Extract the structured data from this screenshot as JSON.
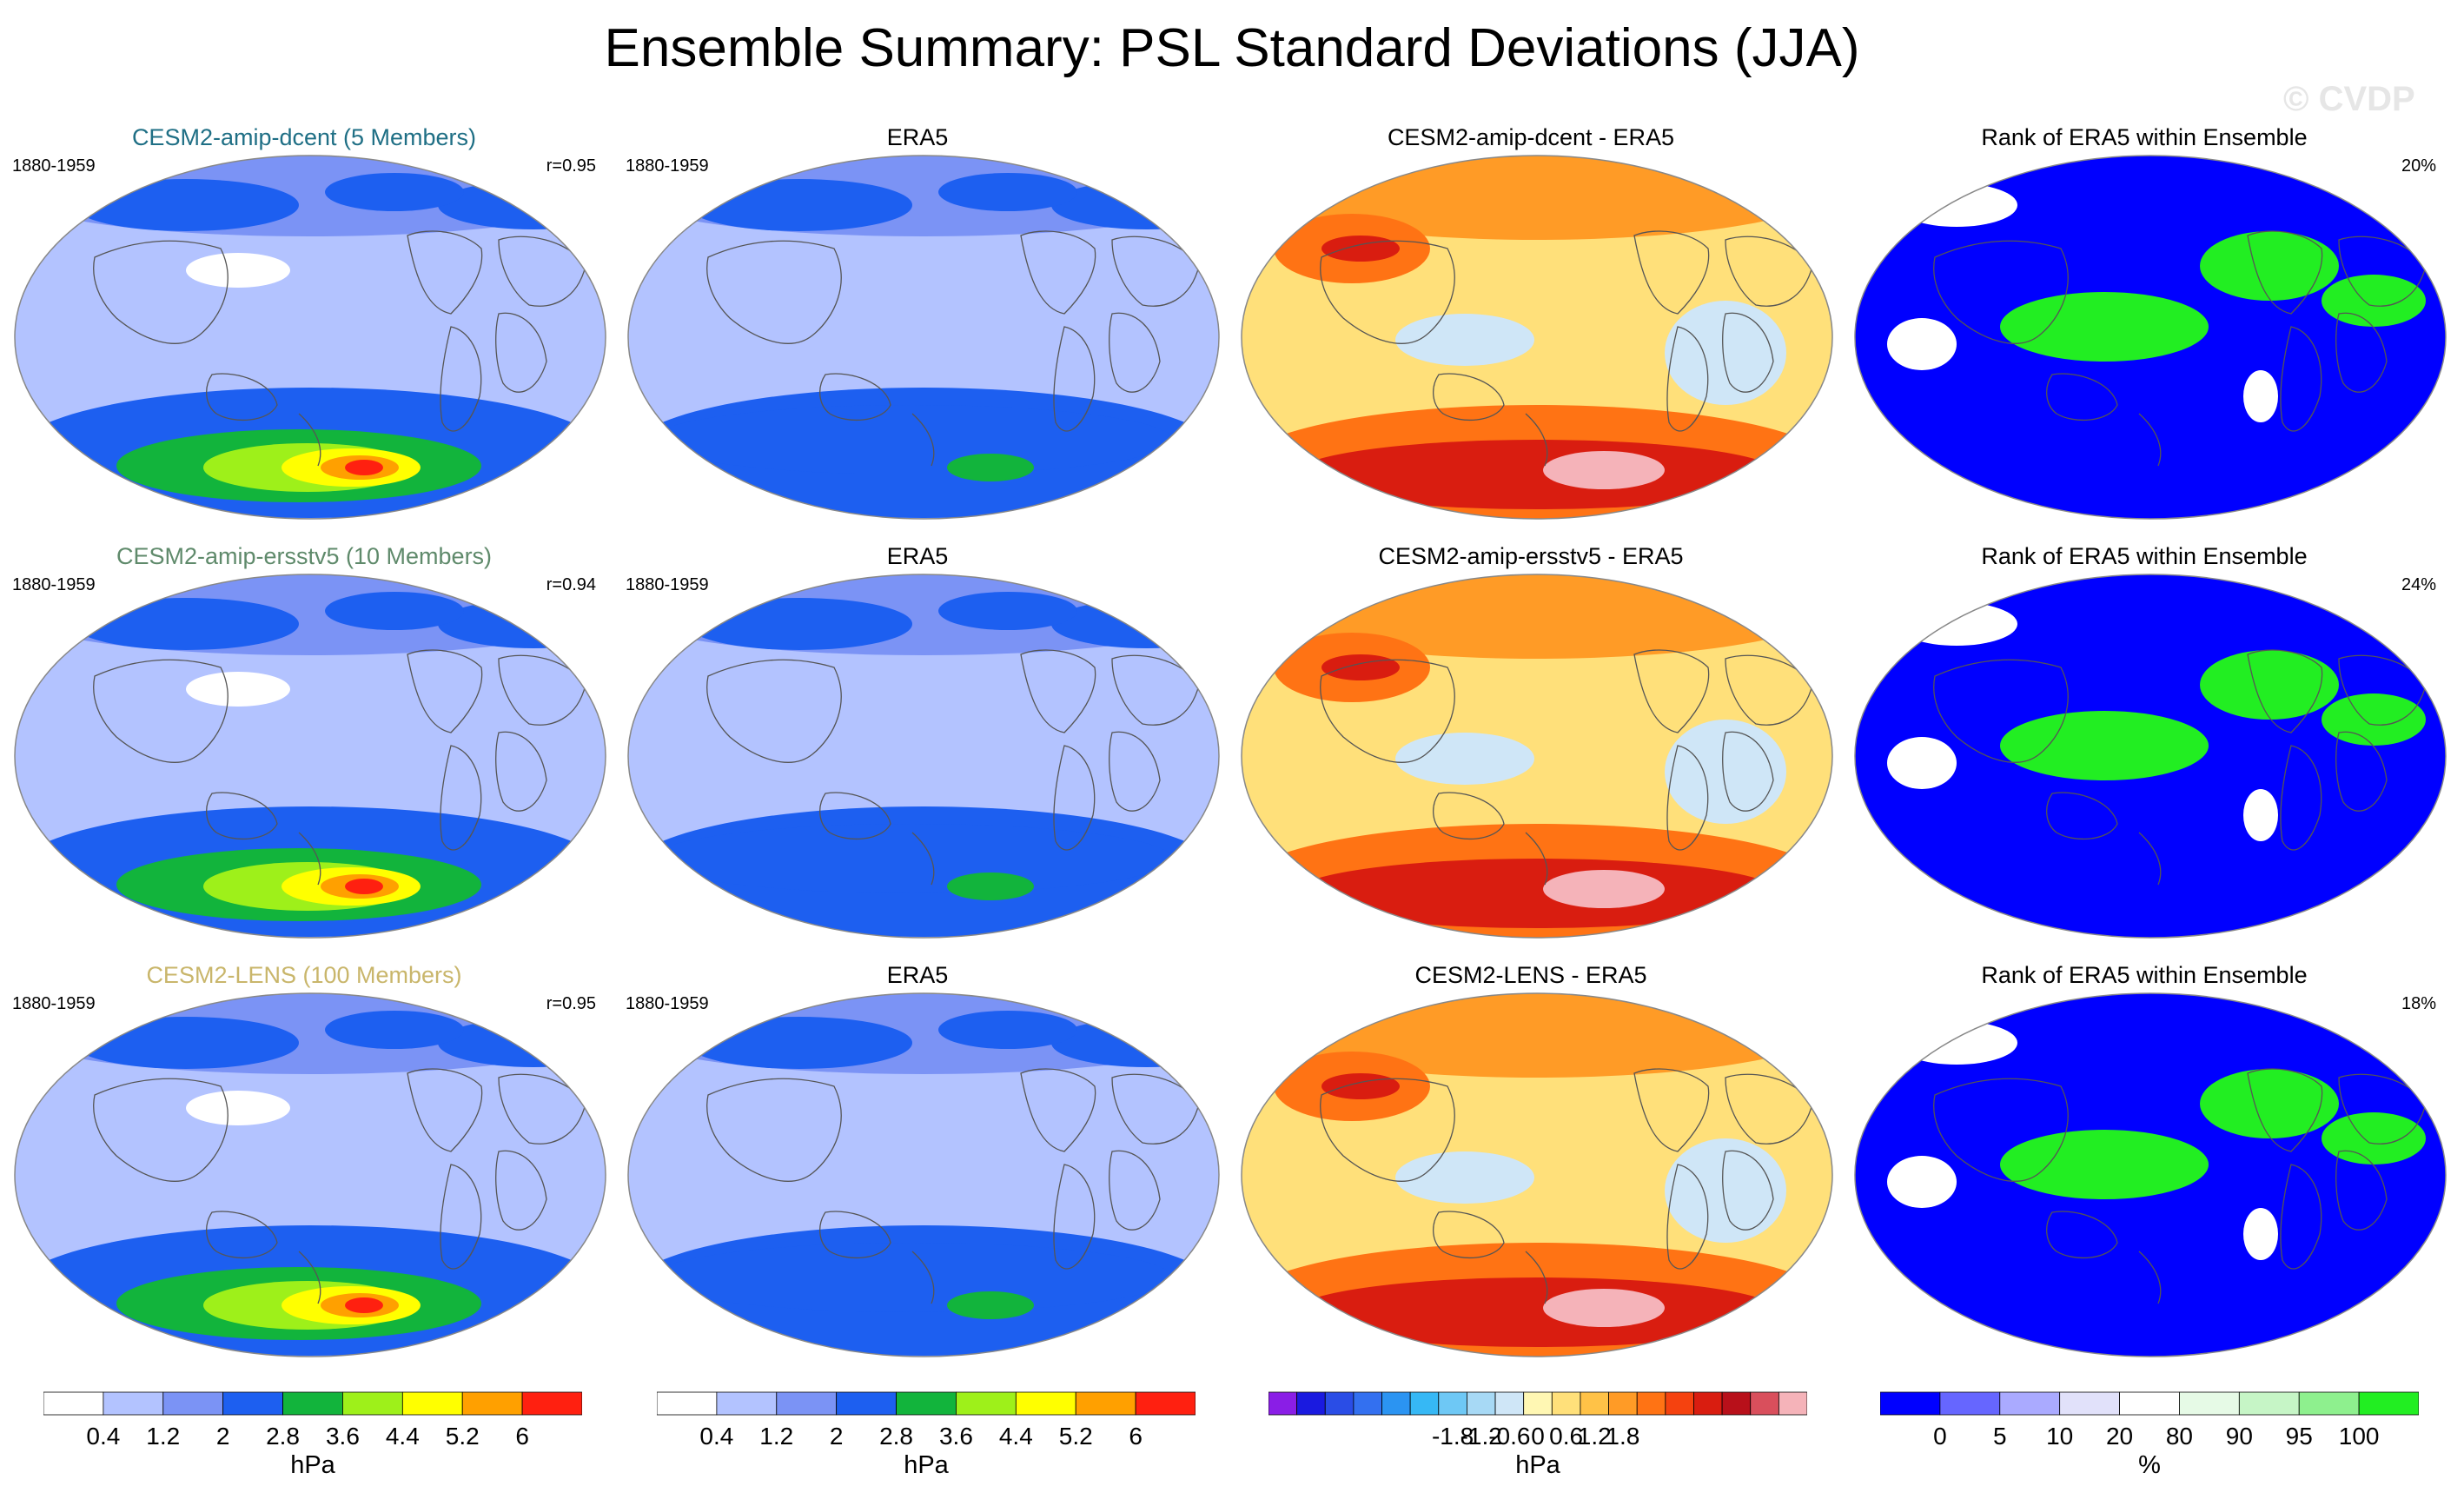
{
  "title": "Ensemble Summary: PSL Standard Deviations (JJA)",
  "watermark": "© CVDP",
  "colors": {
    "dcent": "#1f6f85",
    "ersstv5": "#5f8a6b",
    "lens": "#c9b66b",
    "black": "#000000"
  },
  "rows": [
    {
      "panels": [
        {
          "kind": "std",
          "title": "CESM2-amip-dcent (5 Members)",
          "title_color_key": "dcent",
          "left": "1880-1959",
          "right": "r=0.95"
        },
        {
          "kind": "std",
          "title": "ERA5",
          "title_color_key": "black",
          "left": "1880-1959",
          "right": ""
        },
        {
          "kind": "diff",
          "title": "CESM2-amip-dcent - ERA5",
          "title_color_key": "black",
          "left": "",
          "right": ""
        },
        {
          "kind": "rank",
          "title": "Rank of ERA5 within Ensemble",
          "title_color_key": "black",
          "left": "",
          "right": "20%"
        }
      ]
    },
    {
      "panels": [
        {
          "kind": "std",
          "title": "CESM2-amip-ersstv5 (10 Members)",
          "title_color_key": "ersstv5",
          "left": "1880-1959",
          "right": "r=0.94"
        },
        {
          "kind": "std",
          "title": "ERA5",
          "title_color_key": "black",
          "left": "1880-1959",
          "right": ""
        },
        {
          "kind": "diff",
          "title": "CESM2-amip-ersstv5 - ERA5",
          "title_color_key": "black",
          "left": "",
          "right": ""
        },
        {
          "kind": "rank",
          "title": "Rank of ERA5 within Ensemble",
          "title_color_key": "black",
          "left": "",
          "right": "24%"
        }
      ]
    },
    {
      "panels": [
        {
          "kind": "std",
          "title": "CESM2-LENS (100 Members)",
          "title_color_key": "lens",
          "left": "1880-1959",
          "right": "r=0.95"
        },
        {
          "kind": "std",
          "title": "ERA5",
          "title_color_key": "black",
          "left": "1880-1959",
          "right": ""
        },
        {
          "kind": "diff",
          "title": "CESM2-LENS - ERA5",
          "title_color_key": "black",
          "left": "",
          "right": ""
        },
        {
          "kind": "rank",
          "title": "Rank of ERA5 within Ensemble",
          "title_color_key": "black",
          "left": "",
          "right": "18%"
        }
      ]
    }
  ],
  "colorbars": [
    {
      "unit": "hPa",
      "colors": [
        "#ffffff",
        "#b3c3ff",
        "#7b93f5",
        "#1d5ff0",
        "#12b43c",
        "#9ef01a",
        "#ffff00",
        "#ffa000",
        "#ff2010"
      ],
      "labels": [
        "0.4",
        "1.2",
        "2",
        "2.8",
        "3.6",
        "4.4",
        "5.2",
        "6"
      ]
    },
    {
      "unit": "hPa",
      "colors": [
        "#ffffff",
        "#b3c3ff",
        "#7b93f5",
        "#1d5ff0",
        "#12b43c",
        "#9ef01a",
        "#ffff00",
        "#ffa000",
        "#ff2010"
      ],
      "labels": [
        "0.4",
        "1.2",
        "2",
        "2.8",
        "3.6",
        "4.4",
        "5.2",
        "6"
      ]
    },
    {
      "unit": "hPa",
      "colors": [
        "#8a1ee6",
        "#1a1ae0",
        "#2a4de6",
        "#3370f0",
        "#2b94f2",
        "#36b8f5",
        "#6ec8f5",
        "#a7d9f5",
        "#cfe6f7",
        "#fff7b3",
        "#ffe07a",
        "#ffc247",
        "#ff9b26",
        "#ff7314",
        "#f5420f",
        "#d91d10",
        "#b8101a",
        "#d94f5c",
        "#f5b3b9"
      ],
      "labels": [
        "-1.8",
        "-1.2",
        "-0.6",
        "0",
        "0.6",
        "1.2",
        "1.8"
      ]
    },
    {
      "unit": "%",
      "colors": [
        "#0000ff",
        "#6666ff",
        "#aaaaff",
        "#e1e1fa",
        "#ffffff",
        "#e6fae6",
        "#c6f5c6",
        "#8ef08e",
        "#22ee22"
      ],
      "labels": [
        "0",
        "5",
        "10",
        "20",
        "80",
        "90",
        "95",
        "100"
      ]
    }
  ],
  "chart_data": [
    {
      "type": "heatmap",
      "title": "CESM2-amip-dcent (5 Members)",
      "period": "1880-1959",
      "pattern_correlation": "r=0.95",
      "unit": "hPa"
    },
    {
      "type": "heatmap",
      "title": "ERA5",
      "period": "1880-1959",
      "unit": "hPa"
    },
    {
      "type": "heatmap",
      "title": "CESM2-amip-dcent - ERA5",
      "unit": "hPa"
    },
    {
      "type": "heatmap",
      "title": "Rank of ERA5 within Ensemble",
      "area_fraction": "20%",
      "unit": "%"
    },
    {
      "type": "heatmap",
      "title": "CESM2-amip-ersstv5 (10 Members)",
      "period": "1880-1959",
      "pattern_correlation": "r=0.94",
      "unit": "hPa"
    },
    {
      "type": "heatmap",
      "title": "ERA5",
      "period": "1880-1959",
      "unit": "hPa"
    },
    {
      "type": "heatmap",
      "title": "CESM2-amip-ersstv5 - ERA5",
      "unit": "hPa"
    },
    {
      "type": "heatmap",
      "title": "Rank of ERA5 within Ensemble",
      "area_fraction": "24%",
      "unit": "%"
    },
    {
      "type": "heatmap",
      "title": "CESM2-LENS (100 Members)",
      "period": "1880-1959",
      "pattern_correlation": "r=0.95",
      "unit": "hPa"
    },
    {
      "type": "heatmap",
      "title": "ERA5",
      "period": "1880-1959",
      "unit": "hPa"
    },
    {
      "type": "heatmap",
      "title": "CESM2-LENS - ERA5",
      "unit": "hPa"
    },
    {
      "type": "heatmap",
      "title": "Rank of ERA5 within Ensemble",
      "area_fraction": "18%",
      "unit": "%"
    }
  ]
}
